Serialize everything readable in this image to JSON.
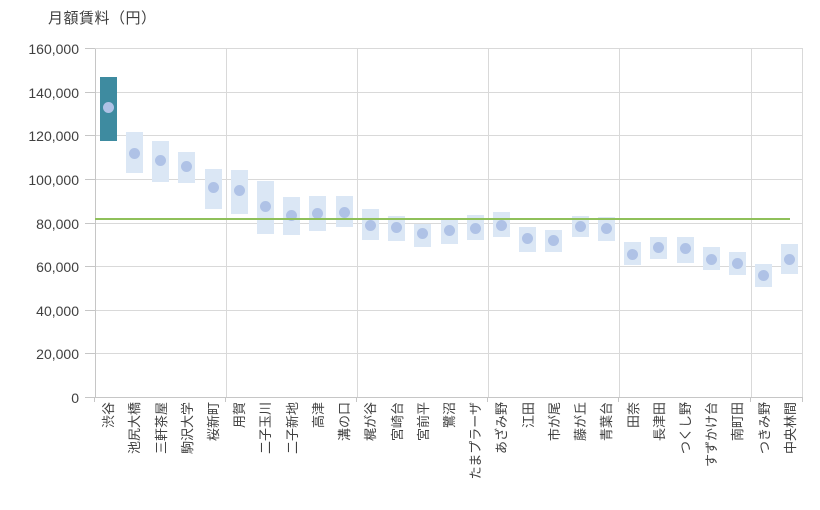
{
  "title": "月額賃料（円）",
  "chart_data": {
    "type": "bar",
    "subtype": "floating-range-bars-with-median-dots",
    "title": "月額賃料（円）",
    "ylabel": "月額賃料（円）",
    "xlabel": "",
    "ylim": [
      0,
      160000
    ],
    "ytick_step": 20000,
    "yticks": [
      0,
      20000,
      40000,
      60000,
      80000,
      100000,
      120000,
      140000,
      160000
    ],
    "ytick_labels": [
      "0",
      "20,000",
      "40,000",
      "60,000",
      "80,000",
      "100,000",
      "120,000",
      "140,000",
      "160,000"
    ],
    "grid": {
      "horizontal": true,
      "vertical_separator_every": 5
    },
    "legend_position": "none",
    "categories": [
      "渋谷",
      "池尻大橋",
      "三軒茶屋",
      "駒沢大学",
      "桜新町",
      "用賀",
      "二子玉川",
      "二子新地",
      "高津",
      "溝の口",
      "梶が谷",
      "宮崎台",
      "宮前平",
      "鷺沼",
      "たまプラーザ",
      "あざみ野",
      "江田",
      "市が尾",
      "藤が丘",
      "青葉台",
      "田奈",
      "長津田",
      "つくし野",
      "すずかけ台",
      "南町田",
      "つきみ野",
      "中央林間"
    ],
    "series": [
      {
        "name": "range",
        "type": "floating-bar",
        "low": [
          118000,
          103000,
          99000,
          98500,
          86500,
          84500,
          75000,
          74500,
          76500,
          78500,
          72500,
          72000,
          69000,
          70500,
          72500,
          74000,
          67000,
          67000,
          74000,
          72000,
          61000,
          63500,
          62000,
          58500,
          56500,
          51000,
          57000
        ],
        "high": [
          147000,
          122000,
          118000,
          113000,
          105000,
          104500,
          99500,
          92000,
          92500,
          92500,
          86500,
          83500,
          80000,
          82500,
          84000,
          85500,
          78500,
          77000,
          83500,
          83000,
          71500,
          74000,
          74000,
          69000,
          67000,
          61500,
          70500
        ]
      },
      {
        "name": "median",
        "type": "point",
        "values": [
          133000,
          112000,
          109000,
          106000,
          96500,
          95000,
          88000,
          83500,
          84500,
          85000,
          79000,
          78000,
          75500,
          77000,
          77500,
          79000,
          73000,
          72000,
          78500,
          77500,
          66000,
          69000,
          68500,
          63500,
          61500,
          56000,
          63500
        ]
      },
      {
        "name": "reference_line",
        "type": "hline",
        "value": 81900,
        "span_fraction": 0.982
      }
    ],
    "highlight_index": 0,
    "colors": {
      "bar_highlight": "#3e8ba0",
      "bar_default": "#dbe7f5",
      "dot": "#afc2e6",
      "hline": "#8fc05a",
      "gridline": "#d9d9d9",
      "axis_line": "#c6c6c6",
      "label_text": "#404040",
      "background": "#ffffff"
    }
  }
}
